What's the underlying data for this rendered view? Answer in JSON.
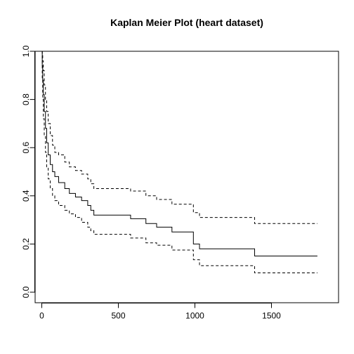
{
  "chart_data": {
    "type": "line",
    "title": "Kaplan Meier Plot (heart dataset)",
    "xlabel": "",
    "ylabel": "",
    "xlim": [
      0,
      1800
    ],
    "ylim": [
      0,
      1.0
    ],
    "x_ticks": [
      0,
      500,
      1000,
      1500
    ],
    "y_ticks": [
      0.0,
      0.2,
      0.4,
      0.6,
      0.8,
      1.0
    ],
    "x_tick_labels": [
      "0",
      "500",
      "1000",
      "1500"
    ],
    "y_tick_labels": [
      "0.0",
      "0.2",
      "0.4",
      "0.6",
      "0.8",
      "1.0"
    ],
    "grid": false,
    "series": [
      {
        "style": "solid",
        "x": [
          0,
          3,
          6,
          10,
          16,
          24,
          32,
          42,
          55,
          70,
          85,
          110,
          150,
          180,
          220,
          260,
          300,
          320,
          340,
          580,
          680,
          750,
          850,
          990,
          1030,
          1390,
          1800
        ],
        "y": [
          1.0,
          0.94,
          0.88,
          0.82,
          0.75,
          0.68,
          0.62,
          0.57,
          0.53,
          0.5,
          0.48,
          0.455,
          0.43,
          0.41,
          0.395,
          0.38,
          0.36,
          0.34,
          0.32,
          0.305,
          0.285,
          0.27,
          0.25,
          0.2,
          0.18,
          0.15,
          0.15
        ]
      },
      {
        "style": "dashed",
        "x": [
          0,
          3,
          6,
          10,
          16,
          24,
          32,
          42,
          55,
          70,
          85,
          110,
          150,
          180,
          220,
          260,
          300,
          320,
          340,
          580,
          680,
          750,
          850,
          990,
          1030,
          1390,
          1800
        ],
        "y": [
          1.0,
          0.99,
          0.96,
          0.92,
          0.86,
          0.8,
          0.75,
          0.7,
          0.65,
          0.61,
          0.58,
          0.57,
          0.54,
          0.52,
          0.505,
          0.49,
          0.47,
          0.45,
          0.43,
          0.42,
          0.4,
          0.385,
          0.365,
          0.33,
          0.31,
          0.285,
          0.285
        ]
      },
      {
        "style": "dashed",
        "x": [
          0,
          3,
          6,
          10,
          16,
          24,
          32,
          42,
          55,
          70,
          85,
          110,
          150,
          180,
          220,
          260,
          300,
          320,
          340,
          580,
          680,
          750,
          850,
          990,
          1030,
          1390,
          1800
        ],
        "y": [
          1.0,
          0.88,
          0.8,
          0.72,
          0.65,
          0.58,
          0.52,
          0.47,
          0.43,
          0.4,
          0.38,
          0.36,
          0.34,
          0.325,
          0.31,
          0.29,
          0.27,
          0.255,
          0.24,
          0.225,
          0.205,
          0.195,
          0.175,
          0.135,
          0.11,
          0.08,
          0.08
        ]
      }
    ]
  }
}
